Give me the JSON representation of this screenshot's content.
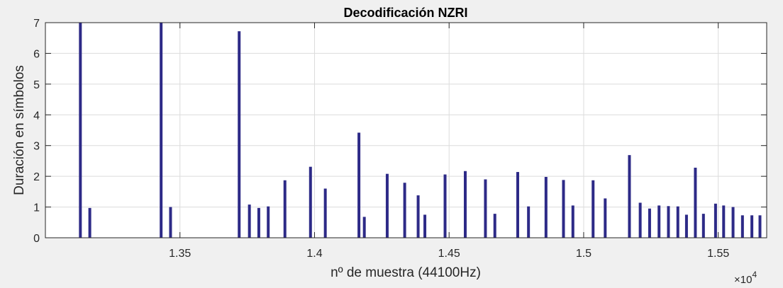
{
  "chart_data": {
    "type": "bar",
    "title": "Decodificación NZRI",
    "xlabel": "nº de muestra (44100Hz)",
    "ylabel": "Duración en símbolos",
    "x_multiplier": "×10",
    "x_exponent": "4",
    "xlim": [
      13000,
      15680
    ],
    "ylim": [
      0,
      7
    ],
    "xticks": [
      13500,
      14000,
      14500,
      15000,
      15500
    ],
    "xtick_labels": [
      "1.35",
      "1.4",
      "1.45",
      "1.5",
      "1.55"
    ],
    "yticks": [
      0,
      1,
      2,
      3,
      4,
      5,
      6,
      7
    ],
    "ytick_labels": [
      "0",
      "1",
      "2",
      "3",
      "4",
      "5",
      "6",
      "7"
    ],
    "grid": true,
    "bar_color": "#2d2a87",
    "series": [
      {
        "x": [
          13130,
          13165,
          13430,
          13465,
          13720,
          13758,
          13793,
          13828,
          13890,
          13985,
          14040,
          14165,
          14185,
          14270,
          14335,
          14385,
          14410,
          14485,
          14560,
          14635,
          14670,
          14755,
          14795,
          14860,
          14925,
          14960,
          15035,
          15080,
          15170,
          15210,
          15245,
          15280,
          15315,
          15350,
          15382,
          15415,
          15445,
          15490,
          15520,
          15555,
          15590,
          15625,
          15655
        ],
        "y": [
          7.0,
          0.97,
          7.0,
          1.0,
          6.72,
          1.08,
          0.97,
          1.02,
          1.87,
          2.31,
          1.6,
          3.42,
          0.68,
          2.08,
          1.79,
          1.38,
          0.75,
          2.06,
          2.17,
          1.9,
          0.78,
          2.14,
          1.02,
          1.98,
          1.88,
          1.05,
          1.87,
          1.28,
          2.69,
          1.14,
          0.95,
          1.05,
          1.03,
          1.02,
          0.75,
          2.28,
          0.78,
          1.11,
          1.05,
          1.0,
          0.73,
          0.73,
          0.73
        ]
      }
    ]
  }
}
